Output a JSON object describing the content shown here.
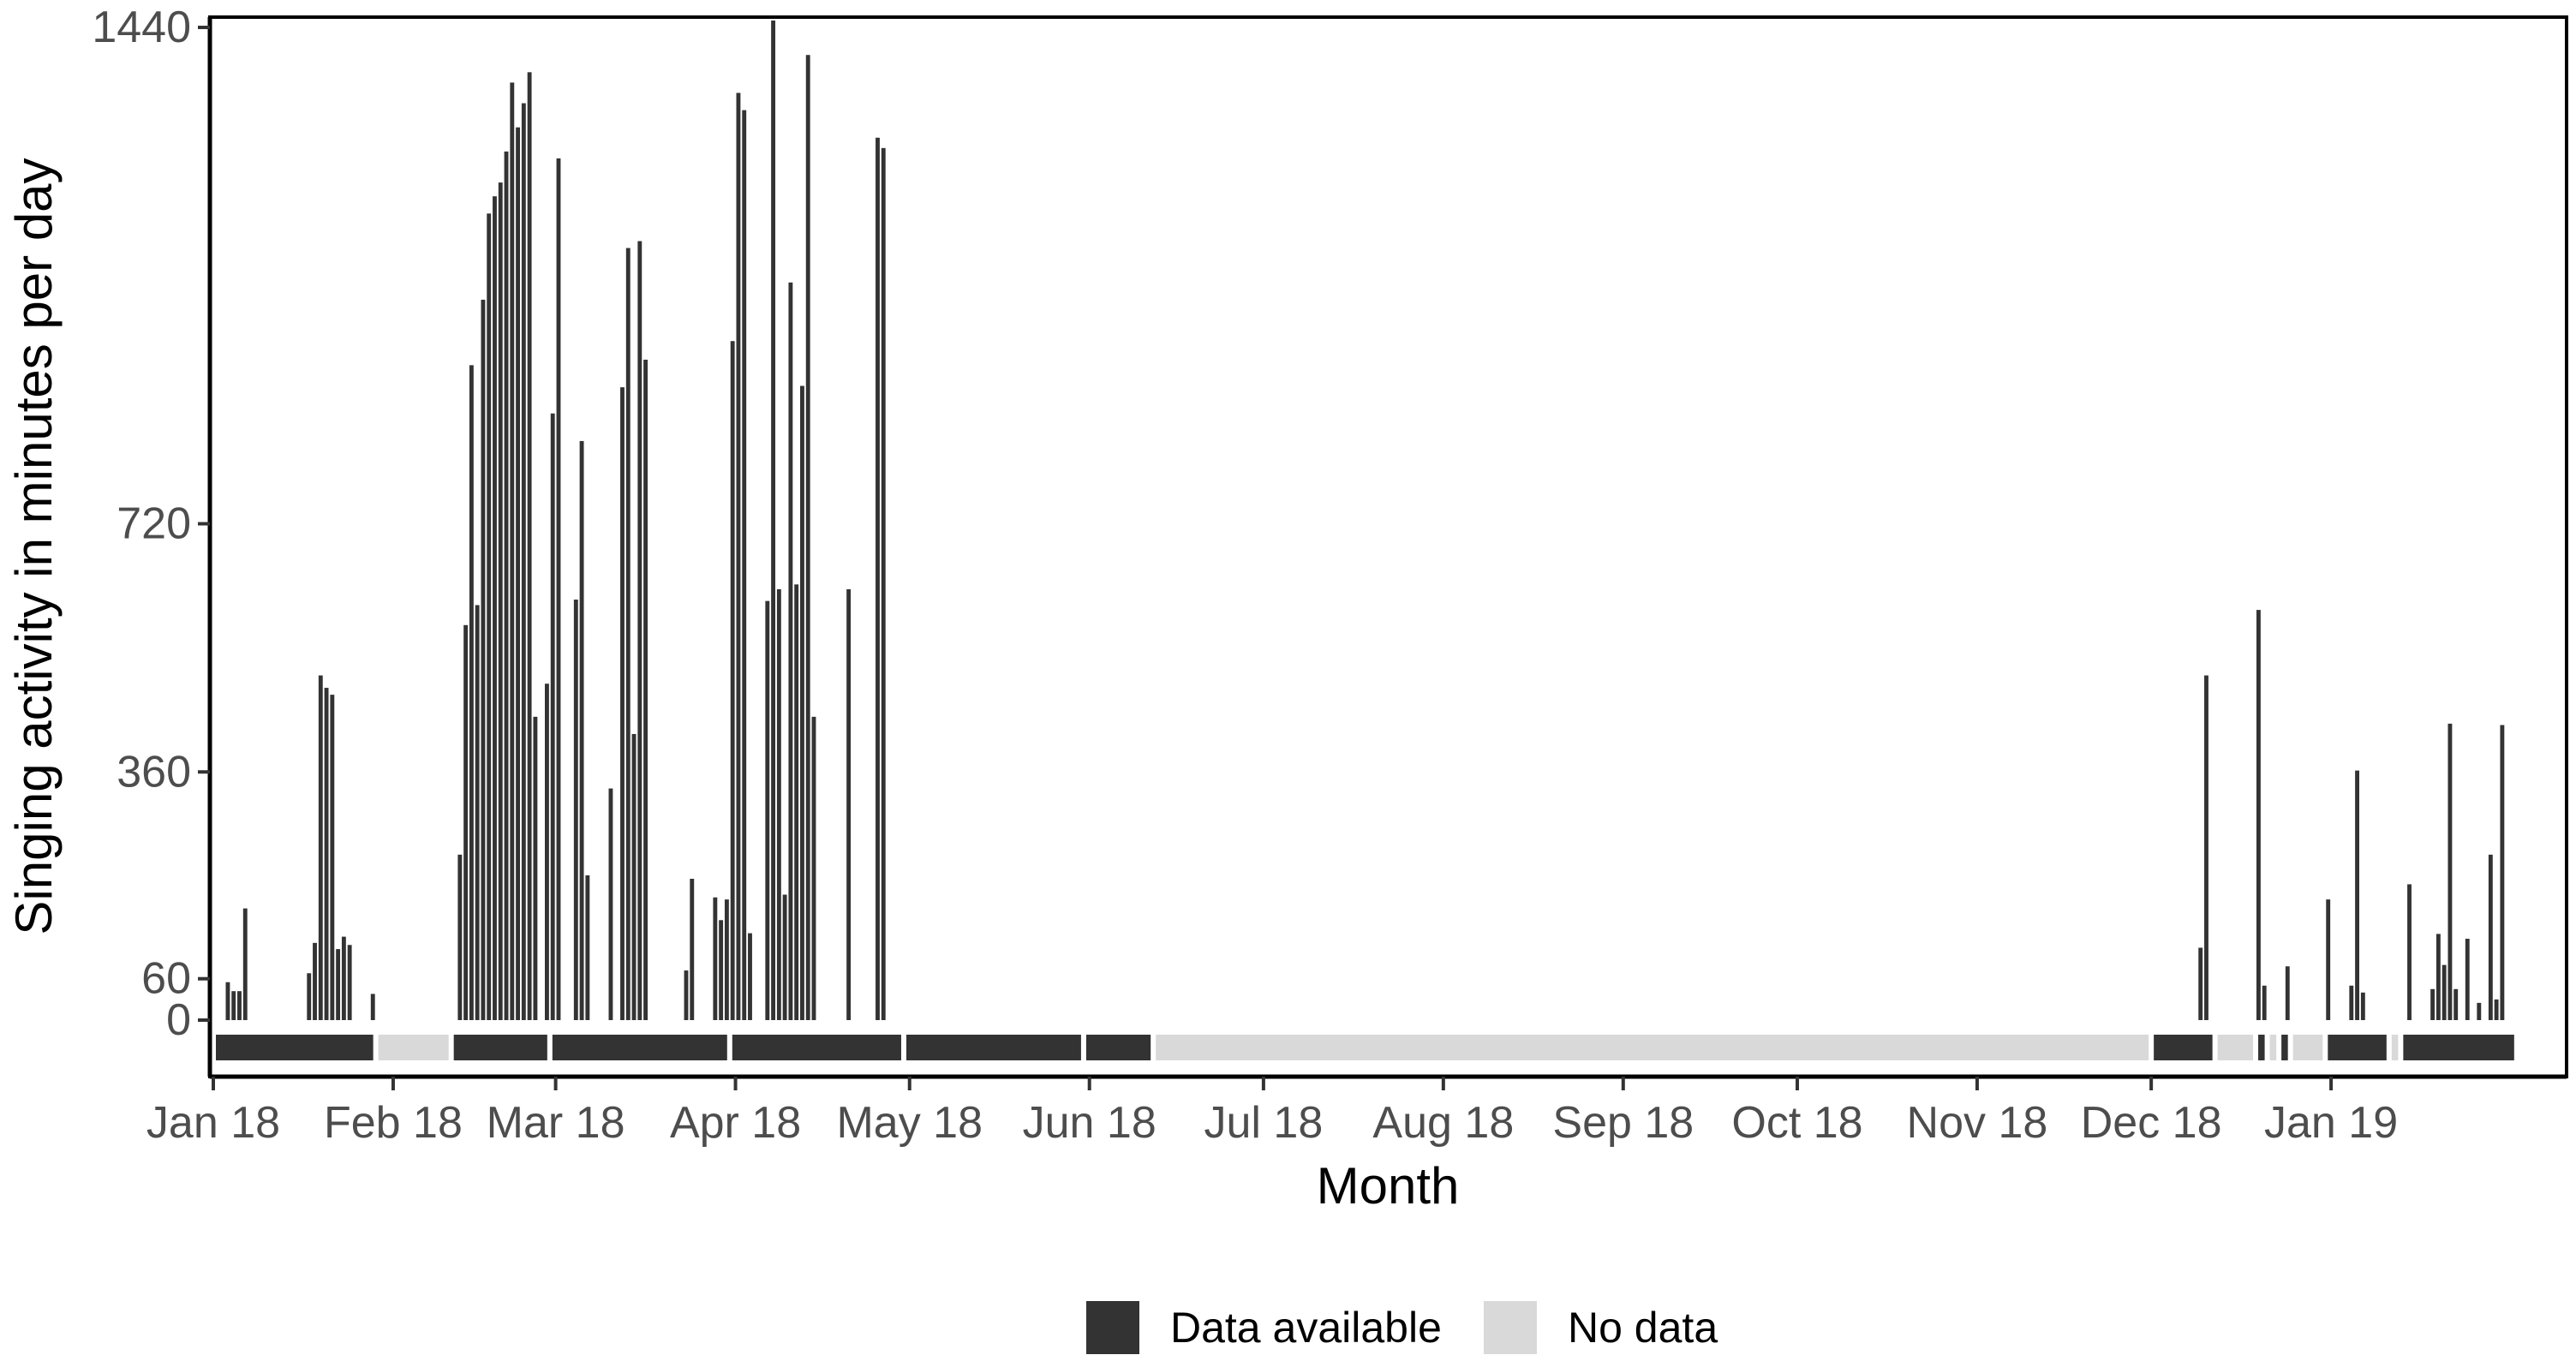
{
  "chart_data": {
    "type": "bar",
    "title": "",
    "xlabel": "Month",
    "ylabel": "Singing activity in minutes per day",
    "y_ticks": [
      0,
      60,
      360,
      720,
      1440
    ],
    "ylim": [
      0,
      1440
    ],
    "x_tick_labels": [
      "Jan 18",
      "Feb 18",
      "Mar 18",
      "Apr 18",
      "May 18",
      "Jun 18",
      "Jul 18",
      "Aug 18",
      "Sep 18",
      "Oct 18",
      "Nov 18",
      "Dec 18",
      "Jan 19"
    ],
    "x_tick_dates": [
      "2018-01-01",
      "2018-02-01",
      "2018-03-01",
      "2018-04-01",
      "2018-05-01",
      "2018-06-01",
      "2018-07-01",
      "2018-08-01",
      "2018-09-01",
      "2018-10-01",
      "2018-11-01",
      "2018-12-01",
      "2019-01-01"
    ],
    "xlim": [
      "2018-01-01",
      "2019-02-10"
    ],
    "grid": false,
    "legend_position": "bottom",
    "colors": {
      "data_available": "#333333",
      "no_data": "#d9d9d9"
    },
    "legend": [
      {
        "label": "Data available",
        "color": "#333333"
      },
      {
        "label": "No data",
        "color": "#d9d9d9"
      }
    ],
    "series": [
      {
        "values": [
          [
            "2018-01-03",
            55
          ],
          [
            "2018-01-04",
            42
          ],
          [
            "2018-01-05",
            42
          ],
          [
            "2018-01-06",
            162
          ],
          [
            "2018-01-17",
            68
          ],
          [
            "2018-01-18",
            112
          ],
          [
            "2018-01-19",
            500
          ],
          [
            "2018-01-20",
            482
          ],
          [
            "2018-01-21",
            472
          ],
          [
            "2018-01-22",
            103
          ],
          [
            "2018-01-23",
            121
          ],
          [
            "2018-01-24",
            109
          ],
          [
            "2018-01-28",
            38
          ],
          [
            "2018-02-12",
            240
          ],
          [
            "2018-02-13",
            573
          ],
          [
            "2018-02-14",
            950
          ],
          [
            "2018-02-15",
            602
          ],
          [
            "2018-02-16",
            1045
          ],
          [
            "2018-02-17",
            1170
          ],
          [
            "2018-02-18",
            1195
          ],
          [
            "2018-02-19",
            1215
          ],
          [
            "2018-02-20",
            1260
          ],
          [
            "2018-02-21",
            1360
          ],
          [
            "2018-02-22",
            1295
          ],
          [
            "2018-02-23",
            1330
          ],
          [
            "2018-02-24",
            1375
          ],
          [
            "2018-02-25",
            440
          ],
          [
            "2018-02-27",
            488
          ],
          [
            "2018-02-28",
            880
          ],
          [
            "2018-03-01",
            1250
          ],
          [
            "2018-03-04",
            610
          ],
          [
            "2018-03-05",
            840
          ],
          [
            "2018-03-06",
            210
          ],
          [
            "2018-03-10",
            336
          ],
          [
            "2018-03-12",
            918
          ],
          [
            "2018-03-13",
            1120
          ],
          [
            "2018-03-14",
            415
          ],
          [
            "2018-03-15",
            1130
          ],
          [
            "2018-03-16",
            958
          ],
          [
            "2018-03-23",
            72
          ],
          [
            "2018-03-24",
            205
          ],
          [
            "2018-03-28",
            178
          ],
          [
            "2018-03-29",
            145
          ],
          [
            "2018-03-30",
            175
          ],
          [
            "2018-03-31",
            985
          ],
          [
            "2018-04-01",
            1345
          ],
          [
            "2018-04-02",
            1320
          ],
          [
            "2018-04-03",
            126
          ],
          [
            "2018-04-06",
            608
          ],
          [
            "2018-04-07",
            1450
          ],
          [
            "2018-04-08",
            625
          ],
          [
            "2018-04-09",
            182
          ],
          [
            "2018-04-10",
            1070
          ],
          [
            "2018-04-11",
            632
          ],
          [
            "2018-04-12",
            920
          ],
          [
            "2018-04-13",
            1400
          ],
          [
            "2018-04-14",
            440
          ],
          [
            "2018-04-20",
            625
          ],
          [
            "2018-04-25",
            1280
          ],
          [
            "2018-04-26",
            1265
          ],
          [
            "2018-12-09",
            105
          ],
          [
            "2018-12-10",
            500
          ],
          [
            "2018-12-19",
            595
          ],
          [
            "2018-12-20",
            50
          ],
          [
            "2018-12-24",
            78
          ],
          [
            "2018-12-31",
            175
          ],
          [
            "2019-01-04",
            50
          ],
          [
            "2019-01-05",
            362
          ],
          [
            "2019-01-06",
            40
          ],
          [
            "2019-01-14",
            197
          ],
          [
            "2019-01-18",
            45
          ],
          [
            "2019-01-19",
            125
          ],
          [
            "2019-01-20",
            80
          ],
          [
            "2019-01-21",
            430
          ],
          [
            "2019-01-22",
            45
          ],
          [
            "2019-01-24",
            118
          ],
          [
            "2019-01-26",
            25
          ],
          [
            "2019-01-28",
            240
          ],
          [
            "2019-01-29",
            30
          ],
          [
            "2019-01-30",
            428
          ]
        ]
      }
    ],
    "availability": [
      {
        "status": "data_available",
        "start": "2018-01-01",
        "end": "2018-01-29"
      },
      {
        "status": "no_data",
        "start": "2018-01-29",
        "end": "2018-02-11"
      },
      {
        "status": "data_available",
        "start": "2018-02-11",
        "end": "2018-02-28"
      },
      {
        "status": "data_available",
        "start": "2018-02-28",
        "end": "2018-03-31"
      },
      {
        "status": "data_available",
        "start": "2018-03-31",
        "end": "2018-04-30"
      },
      {
        "status": "data_available",
        "start": "2018-04-30",
        "end": "2018-05-31"
      },
      {
        "status": "data_available",
        "start": "2018-05-31",
        "end": "2018-06-12"
      },
      {
        "status": "no_data",
        "start": "2018-06-12",
        "end": "2018-12-01"
      },
      {
        "status": "data_available",
        "start": "2018-12-01",
        "end": "2018-12-12"
      },
      {
        "status": "no_data",
        "start": "2018-12-12",
        "end": "2018-12-19"
      },
      {
        "status": "data_available",
        "start": "2018-12-19",
        "end": "2018-12-21"
      },
      {
        "status": "no_data",
        "start": "2018-12-21",
        "end": "2018-12-23"
      },
      {
        "status": "data_available",
        "start": "2018-12-23",
        "end": "2018-12-25"
      },
      {
        "status": "no_data",
        "start": "2018-12-25",
        "end": "2018-12-31"
      },
      {
        "status": "data_available",
        "start": "2018-12-31",
        "end": "2019-01-11"
      },
      {
        "status": "no_data",
        "start": "2019-01-11",
        "end": "2019-01-13"
      },
      {
        "status": "data_available",
        "start": "2019-01-13",
        "end": "2019-02-02"
      }
    ]
  }
}
